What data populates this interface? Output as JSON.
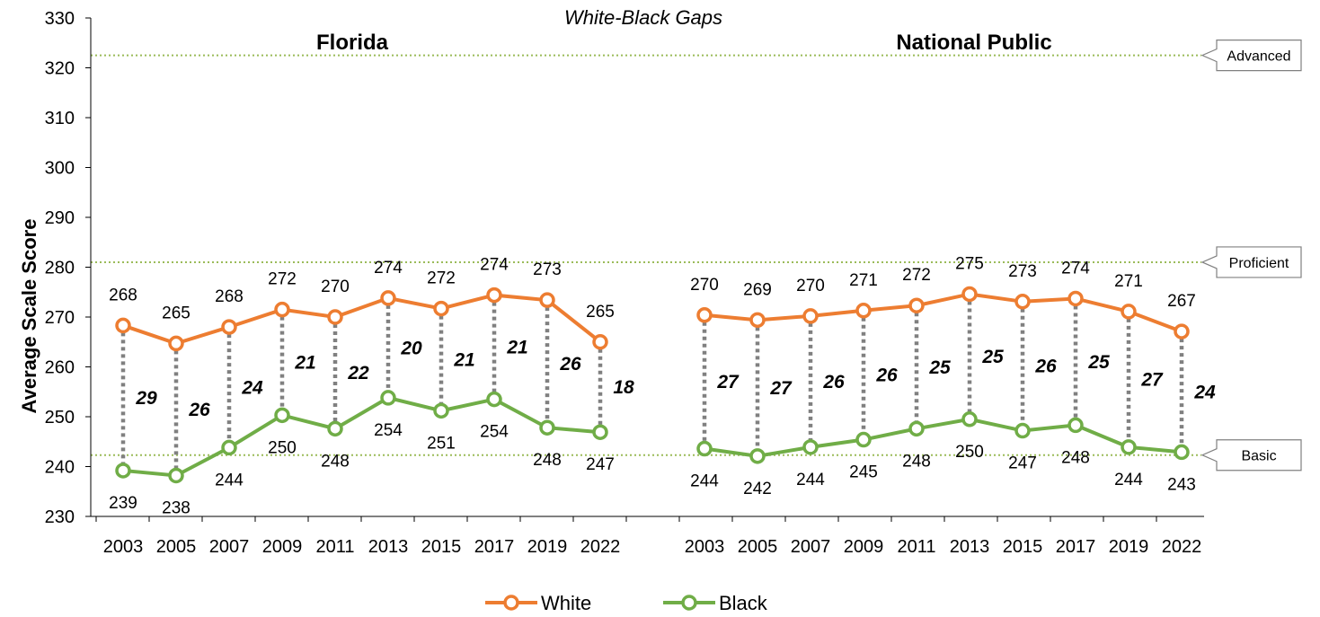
{
  "chart_data": {
    "type": "line",
    "title": "White-Black Gaps",
    "ylabel": "Average Scale Score",
    "ylim": [
      230,
      330
    ],
    "yticks": [
      230,
      240,
      250,
      260,
      270,
      280,
      290,
      300,
      310,
      320,
      330
    ],
    "x": [
      "2003",
      "2005",
      "2007",
      "2009",
      "2011",
      "2013",
      "2015",
      "2017",
      "2019",
      "2022"
    ],
    "legend": [
      "White",
      "Black"
    ],
    "legend_position": "bottom",
    "colors": {
      "White": "#ED7D31",
      "Black": "#70AD47",
      "gap": "#808080",
      "levels": "#9BBB59"
    },
    "achievement_levels": [
      {
        "name": "Advanced",
        "value": 322.5
      },
      {
        "name": "Proficient",
        "value": 281
      },
      {
        "name": "Basic",
        "value": 242.3
      }
    ],
    "panels": [
      {
        "name": "Florida",
        "series": [
          {
            "name": "White",
            "values": [
              268.3,
              264.7,
              268.0,
              271.5,
              270.0,
              273.8,
              271.7,
              274.4,
              273.4,
              265.0
            ],
            "labels": [
              "268",
              "265",
              "268",
              "272",
              "270",
              "274",
              "272",
              "274",
              "273",
              "265"
            ]
          },
          {
            "name": "Black",
            "values": [
              239.2,
              238.2,
              243.8,
              250.3,
              247.6,
              253.8,
              251.2,
              253.5,
              247.8,
              246.9
            ],
            "labels": [
              "239",
              "238",
              "244",
              "250",
              "248",
              "254",
              "251",
              "254",
              "248",
              "247"
            ]
          }
        ],
        "gaps": [
          "29",
          "26",
          "24",
          "21",
          "22",
          "20",
          "21",
          "21",
          "26",
          "18"
        ]
      },
      {
        "name": "National Public",
        "series": [
          {
            "name": "White",
            "values": [
              270.4,
              269.4,
              270.2,
              271.3,
              272.3,
              274.6,
              273.1,
              273.7,
              271.1,
              267.1
            ],
            "labels": [
              "270",
              "269",
              "270",
              "271",
              "272",
              "275",
              "273",
              "274",
              "271",
              "267"
            ]
          },
          {
            "name": "Black",
            "values": [
              243.6,
              242.1,
              243.9,
              245.4,
              247.6,
              249.5,
              247.2,
              248.3,
              243.9,
              242.9
            ],
            "labels": [
              "244",
              "242",
              "244",
              "245",
              "248",
              "250",
              "247",
              "248",
              "244",
              "243"
            ]
          }
        ],
        "gaps": [
          "27",
          "27",
          "26",
          "26",
          "25",
          "25",
          "26",
          "25",
          "27",
          "24"
        ]
      }
    ]
  }
}
